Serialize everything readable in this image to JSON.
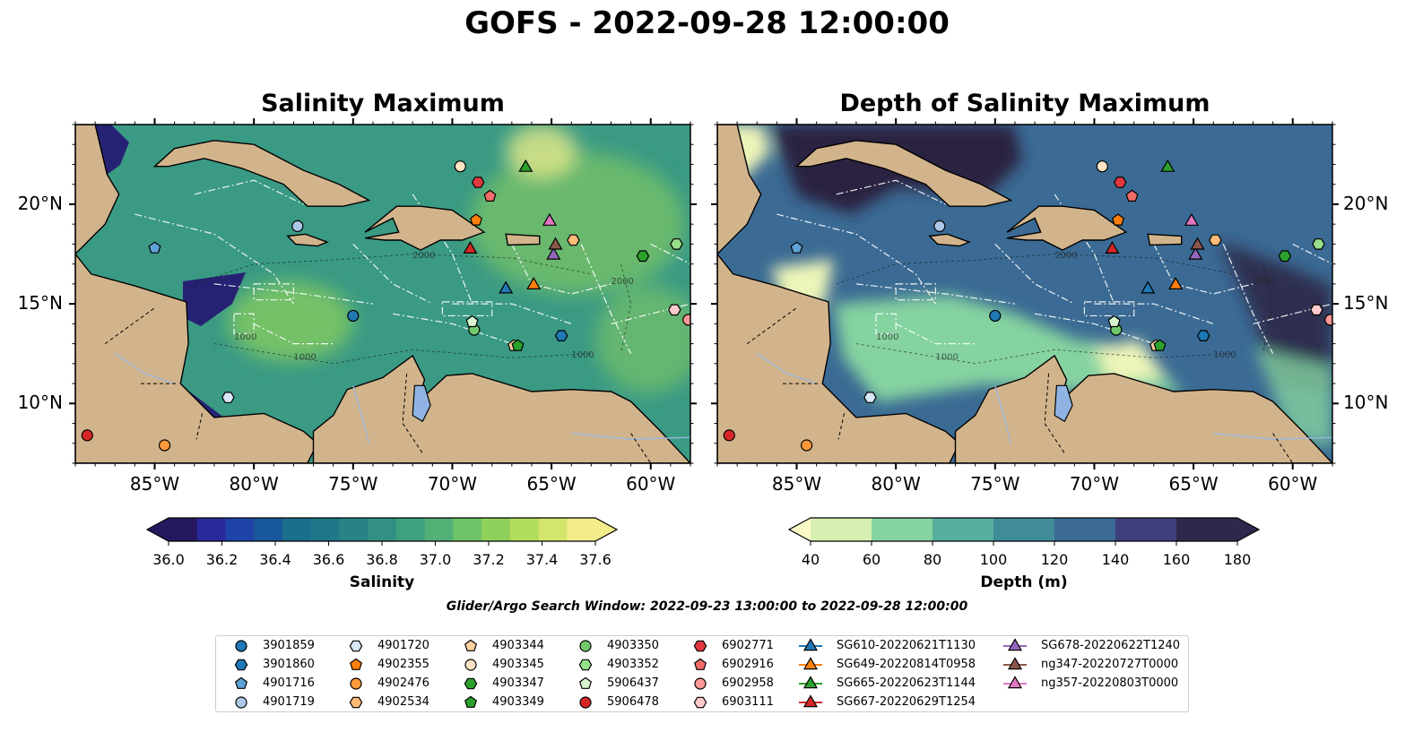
{
  "title": "GOFS - 2022-09-28 12:00:00",
  "panels": [
    {
      "title": "Salinity Maximum"
    },
    {
      "title": "Depth of Salinity Maximum"
    }
  ],
  "axes": {
    "x_ticks": [
      "85°W",
      "80°W",
      "75°W",
      "70°W",
      "65°W",
      "60°W"
    ],
    "y_ticks": [
      "20°N",
      "15°N",
      "10°N"
    ],
    "lon_range": [
      -89,
      -58
    ],
    "lat_range": [
      7,
      24
    ]
  },
  "contour_labels": [
    "1000",
    "1000",
    "1000",
    "2000",
    "2000"
  ],
  "colorbars": [
    {
      "label": "Salinity",
      "ticks": [
        "36.0",
        "36.2",
        "36.4",
        "36.6",
        "36.8",
        "37.0",
        "37.2",
        "37.4",
        "37.6"
      ],
      "colors": [
        "#26185f",
        "#2a2a9a",
        "#1f44a8",
        "#18589a",
        "#1b6d8c",
        "#20778a",
        "#288387",
        "#319083",
        "#3da07e",
        "#52b074",
        "#6ec268",
        "#8fd15c",
        "#b2dd5a",
        "#d3e56a",
        "#f3ec8b"
      ]
    },
    {
      "label": "Depth (m)",
      "ticks": [
        "40",
        "60",
        "80",
        "100",
        "120",
        "140",
        "160",
        "180"
      ],
      "colors": [
        "#d7f0b2",
        "#85d3a0",
        "#56ae9e",
        "#3f8c98",
        "#3b6b94",
        "#403f7e",
        "#30284c"
      ]
    }
  ],
  "search_window": "Glider/Argo Search Window: 2022-09-23 13:00:00 to 2022-09-28 12:00:00",
  "legend": [
    {
      "label": "3901859",
      "marker": "circle",
      "color": "#1f77b4"
    },
    {
      "label": "3901860",
      "marker": "hexagon",
      "color": "#1f77b4"
    },
    {
      "label": "4901716",
      "marker": "pentagon",
      "color": "#5fa2d4"
    },
    {
      "label": "4901719",
      "marker": "circle",
      "color": "#aec7e8"
    },
    {
      "label": "4901720",
      "marker": "hexagon",
      "color": "#d6e6f5"
    },
    {
      "label": "4902355",
      "marker": "pentagon",
      "color": "#ff7f0e"
    },
    {
      "label": "4902476",
      "marker": "circle",
      "color": "#ff9a3a"
    },
    {
      "label": "4902534",
      "marker": "hexagon",
      "color": "#ffbb78"
    },
    {
      "label": "4903344",
      "marker": "pentagon",
      "color": "#ffd0a0"
    },
    {
      "label": "4903345",
      "marker": "circle",
      "color": "#ffe4c4"
    },
    {
      "label": "4903347",
      "marker": "hexagon",
      "color": "#2ca02c"
    },
    {
      "label": "4903349",
      "marker": "pentagon",
      "color": "#2ca02c"
    },
    {
      "label": "4903350",
      "marker": "circle",
      "color": "#71c96d"
    },
    {
      "label": "4903352",
      "marker": "hexagon",
      "color": "#98df8a"
    },
    {
      "label": "5906437",
      "marker": "pentagon",
      "color": "#d7f5cf"
    },
    {
      "label": "5906478",
      "marker": "circle",
      "color": "#d62728"
    },
    {
      "label": "6902771",
      "marker": "hexagon",
      "color": "#e0393d"
    },
    {
      "label": "6902916",
      "marker": "pentagon",
      "color": "#f26b6b"
    },
    {
      "label": "6902958",
      "marker": "circle",
      "color": "#ff9896"
    },
    {
      "label": "6903111",
      "marker": "hexagon",
      "color": "#ffcaca"
    },
    {
      "label": "SG610-20220621T1130",
      "marker": "triangle",
      "color": "#1f77b4"
    },
    {
      "label": "SG649-20220814T0958",
      "marker": "triangle",
      "color": "#ff7f0e"
    },
    {
      "label": "SG665-20220623T1144",
      "marker": "triangle",
      "color": "#2ca02c"
    },
    {
      "label": "SG667-20220629T1254",
      "marker": "triangle",
      "color": "#d62728"
    },
    {
      "label": "SG678-20220622T1240",
      "marker": "triangle",
      "color": "#9467bd"
    },
    {
      "label": "ng347-20220727T0000",
      "marker": "triangle",
      "color": "#8c564b"
    },
    {
      "label": "ng357-20220803T0000",
      "marker": "triangle",
      "color": "#e377c2"
    }
  ],
  "markers": [
    {
      "id": "3901859",
      "lon": -75.0,
      "lat": 14.4
    },
    {
      "id": "3901860",
      "lon": -64.5,
      "lat": 13.4
    },
    {
      "id": "4901716",
      "lon": -85.0,
      "lat": 17.8
    },
    {
      "id": "4901719",
      "lon": -77.8,
      "lat": 18.9
    },
    {
      "id": "4901720",
      "lon": -81.3,
      "lat": 10.3
    },
    {
      "id": "4902355",
      "lon": -68.8,
      "lat": 19.2
    },
    {
      "id": "4902476",
      "lon": -84.5,
      "lat": 7.9
    },
    {
      "id": "4902534",
      "lon": -63.9,
      "lat": 18.2
    },
    {
      "id": "4903344",
      "lon": -66.9,
      "lat": 12.9
    },
    {
      "id": "4903345",
      "lon": -69.6,
      "lat": 21.9
    },
    {
      "id": "4903347",
      "lon": -60.4,
      "lat": 17.4
    },
    {
      "id": "4903349",
      "lon": -66.7,
      "lat": 12.9
    },
    {
      "id": "4903350",
      "lon": -68.9,
      "lat": 13.7
    },
    {
      "id": "4903352",
      "lon": -58.7,
      "lat": 18.0
    },
    {
      "id": "5906437",
      "lon": -69.0,
      "lat": 14.1
    },
    {
      "id": "5906478",
      "lon": -88.4,
      "lat": 8.4
    },
    {
      "id": "6902771",
      "lon": -68.7,
      "lat": 21.1
    },
    {
      "id": "6902916",
      "lon": -68.1,
      "lat": 20.4
    },
    {
      "id": "6902958",
      "lon": -58.1,
      "lat": 14.2
    },
    {
      "id": "6903111",
      "lon": -58.8,
      "lat": 14.7
    },
    {
      "id": "SG610-20220621T1130",
      "lon": -67.3,
      "lat": 15.8
    },
    {
      "id": "SG649-20220814T0958",
      "lon": -65.9,
      "lat": 16.0
    },
    {
      "id": "SG665-20220623T1144",
      "lon": -66.3,
      "lat": 21.9
    },
    {
      "id": "SG667-20220629T1254",
      "lon": -69.1,
      "lat": 17.8
    },
    {
      "id": "SG678-20220622T1240",
      "lon": -64.9,
      "lat": 17.5
    },
    {
      "id": "ng347-20220727T0000",
      "lon": -64.8,
      "lat": 18.0
    },
    {
      "id": "ng357-20220803T0000",
      "lon": -65.1,
      "lat": 19.2
    }
  ],
  "map_colors": {
    "land": "#d2b48c",
    "lake": "#8fb4e3",
    "sal_background": "#3a9a84",
    "sal_deep_blue": "#262273",
    "sal_high": "#8fd15c",
    "depth_background": "#3b6b94",
    "depth_dark": "#2b2040",
    "depth_light": "#85d3a0",
    "depth_yellow": "#eef5b8"
  }
}
